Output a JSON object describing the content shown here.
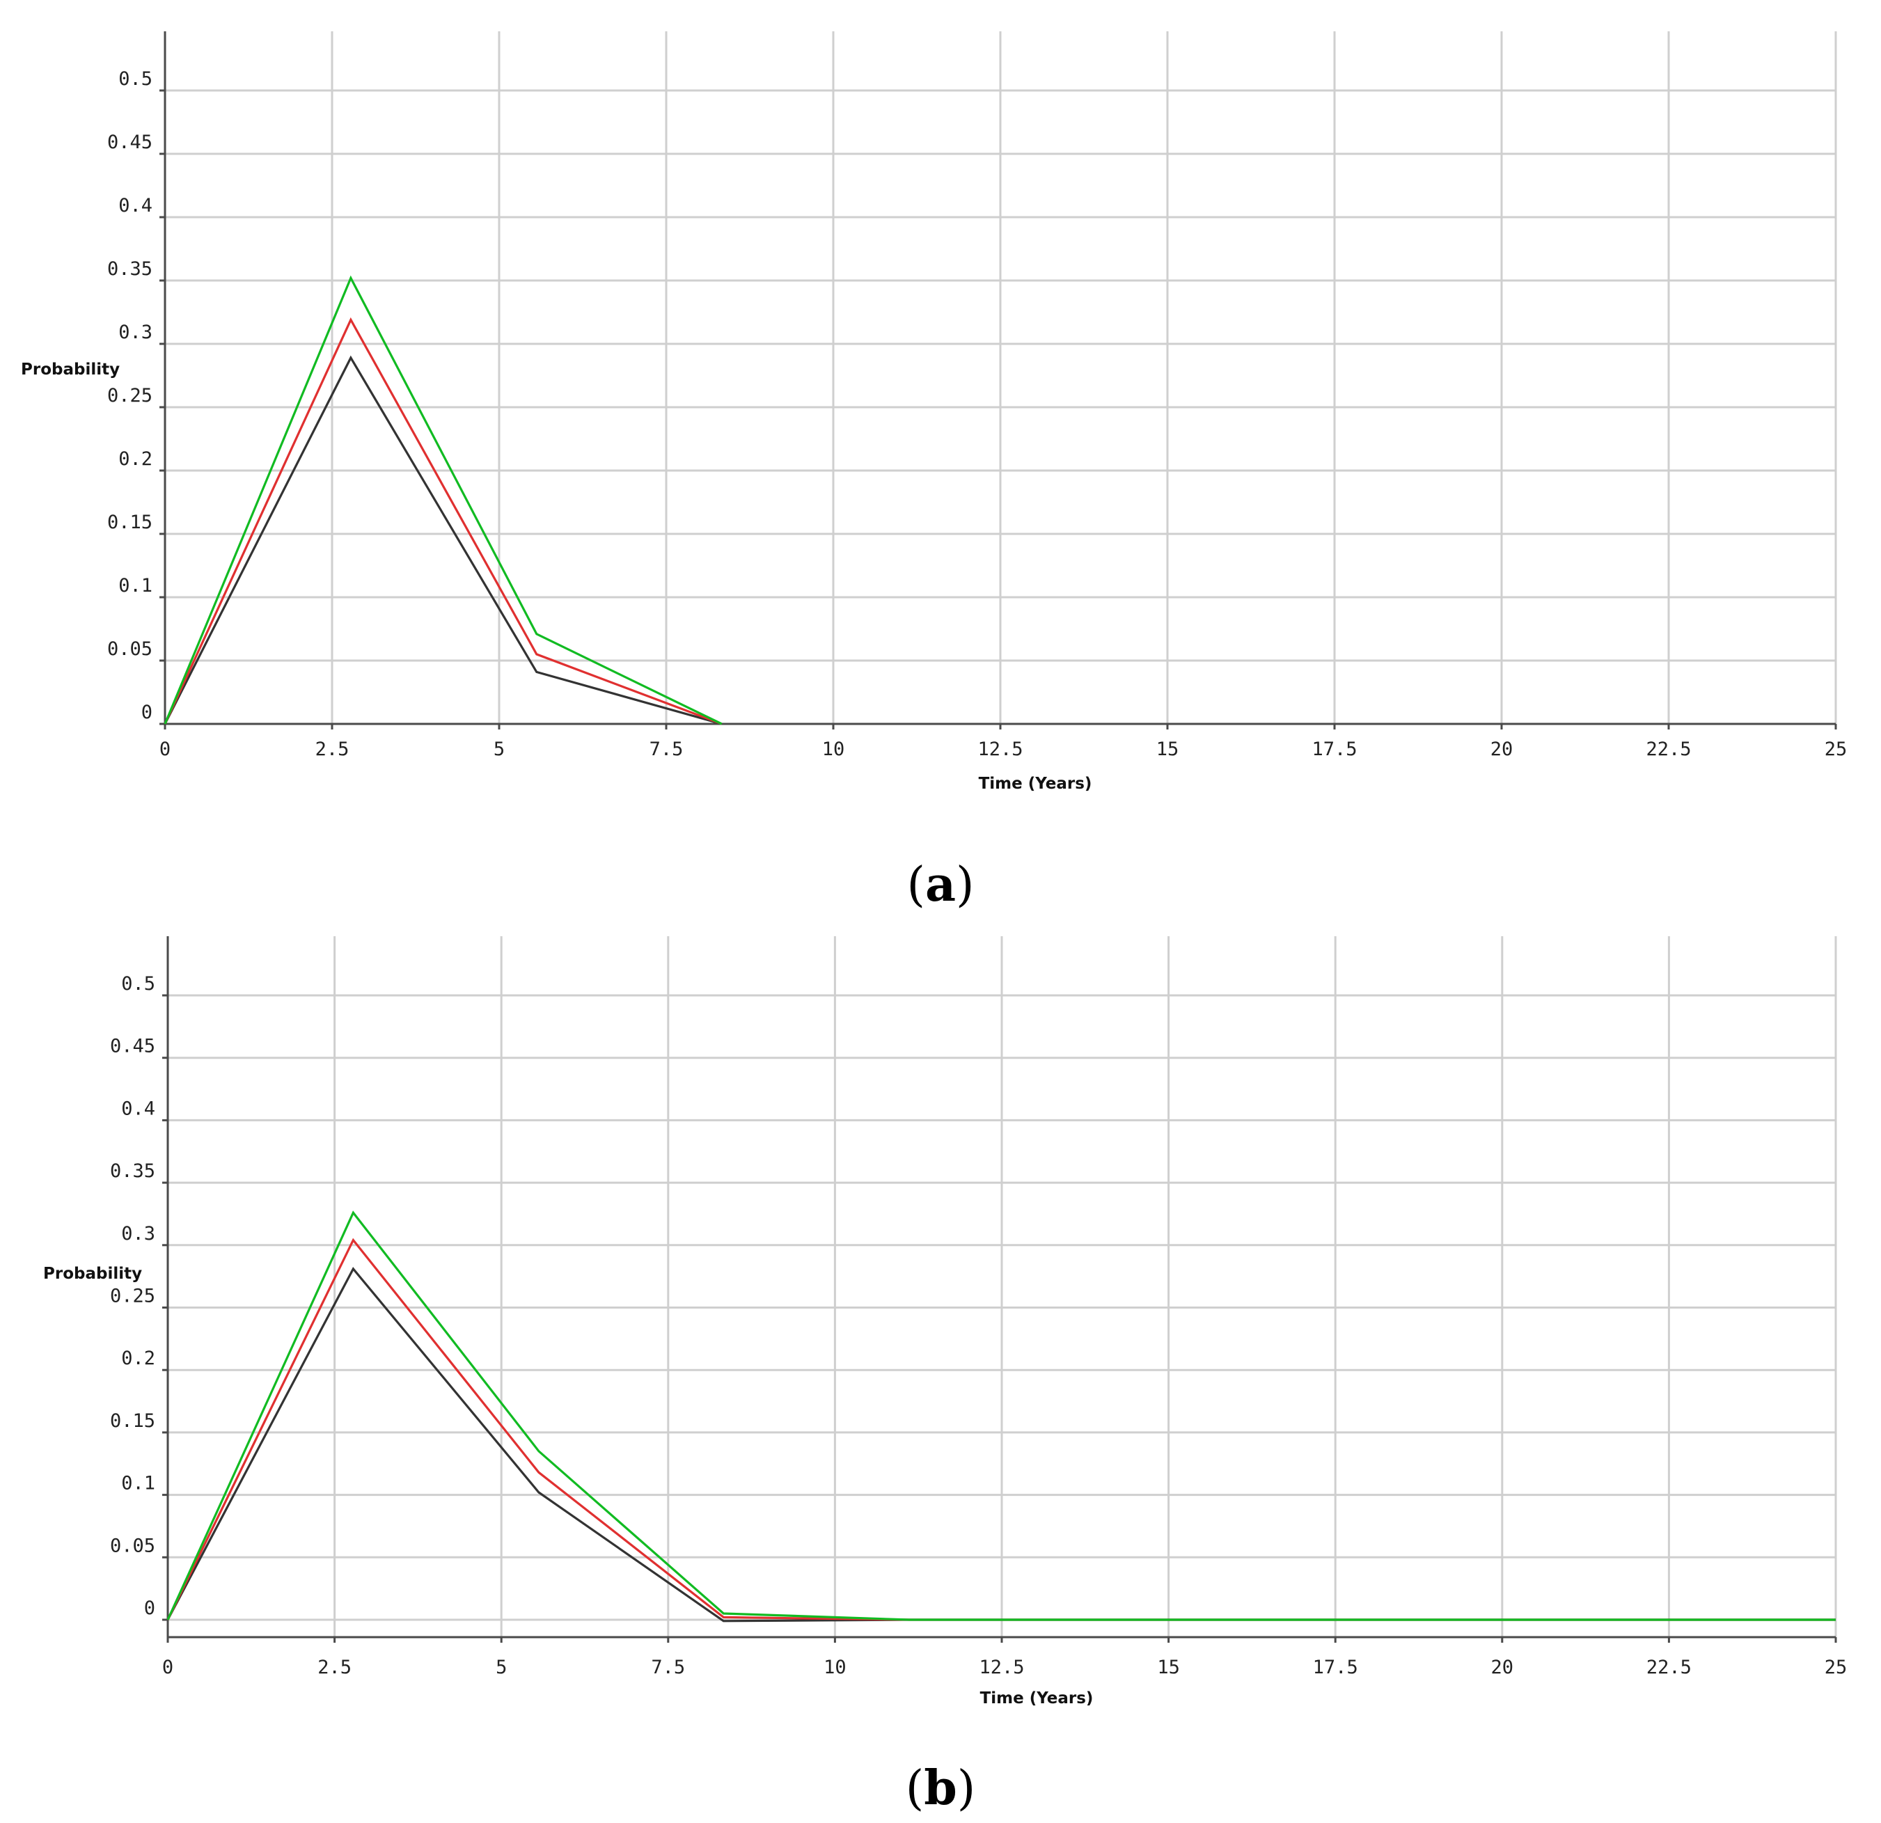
{
  "chart_data": [
    {
      "panel": "a",
      "type": "line",
      "xlabel": "Time (Years)",
      "ylabel": "Probability",
      "xlim": [
        0,
        25
      ],
      "ylim": [
        0,
        0.5
      ],
      "xticks": [
        "0",
        "2.5",
        "5",
        "7.5",
        "10",
        "12.5",
        "15",
        "17.5",
        "20",
        "22.5",
        "25"
      ],
      "yticks": [
        "0",
        "0.05",
        "0.1",
        "0.15",
        "0.2",
        "0.25",
        "0.3",
        "0.35",
        "0.4",
        "0.45",
        "0.5"
      ],
      "grid": true,
      "series": [
        {
          "color": "#333333",
          "x": [
            0,
            2.78,
            5.56,
            8.33
          ],
          "y": [
            0,
            0.289,
            0.041,
            0
          ]
        },
        {
          "color": "#e03030",
          "x": [
            0,
            2.78,
            5.56,
            8.33
          ],
          "y": [
            0,
            0.319,
            0.055,
            0
          ]
        },
        {
          "color": "#11bb22",
          "x": [
            0,
            2.78,
            5.56,
            8.33
          ],
          "y": [
            0,
            0.352,
            0.071,
            0
          ]
        }
      ]
    },
    {
      "panel": "b",
      "type": "line",
      "xlabel": "Time (Years)",
      "ylabel": "Probability",
      "xlim": [
        0,
        25
      ],
      "ylim": [
        0,
        0.5
      ],
      "xticks": [
        "0",
        "2.5",
        "5",
        "7.5",
        "10",
        "12.5",
        "15",
        "17.5",
        "20",
        "22.5",
        "25"
      ],
      "yticks": [
        "0",
        "0.05",
        "0.1",
        "0.15",
        "0.2",
        "0.25",
        "0.3",
        "0.35",
        "0.4",
        "0.45",
        "0.5"
      ],
      "grid": true,
      "series": [
        {
          "color": "#333333",
          "x": [
            0,
            2.78,
            5.56,
            8.33,
            11.11,
            25
          ],
          "y": [
            0,
            0.281,
            0.102,
            -0.001,
            0,
            0
          ]
        },
        {
          "color": "#e03030",
          "x": [
            0,
            2.78,
            5.56,
            8.33,
            11.11,
            25
          ],
          "y": [
            0,
            0.304,
            0.118,
            0.002,
            0,
            0
          ]
        },
        {
          "color": "#11bb22",
          "x": [
            0,
            2.78,
            5.56,
            8.33,
            11.11,
            25
          ],
          "y": [
            0,
            0.326,
            0.135,
            0.005,
            0,
            0
          ]
        }
      ]
    }
  ],
  "captions": {
    "a": {
      "open": "(",
      "letter": "a",
      "close": ")"
    },
    "b": {
      "open": "(",
      "letter": "b",
      "close": ")"
    }
  }
}
